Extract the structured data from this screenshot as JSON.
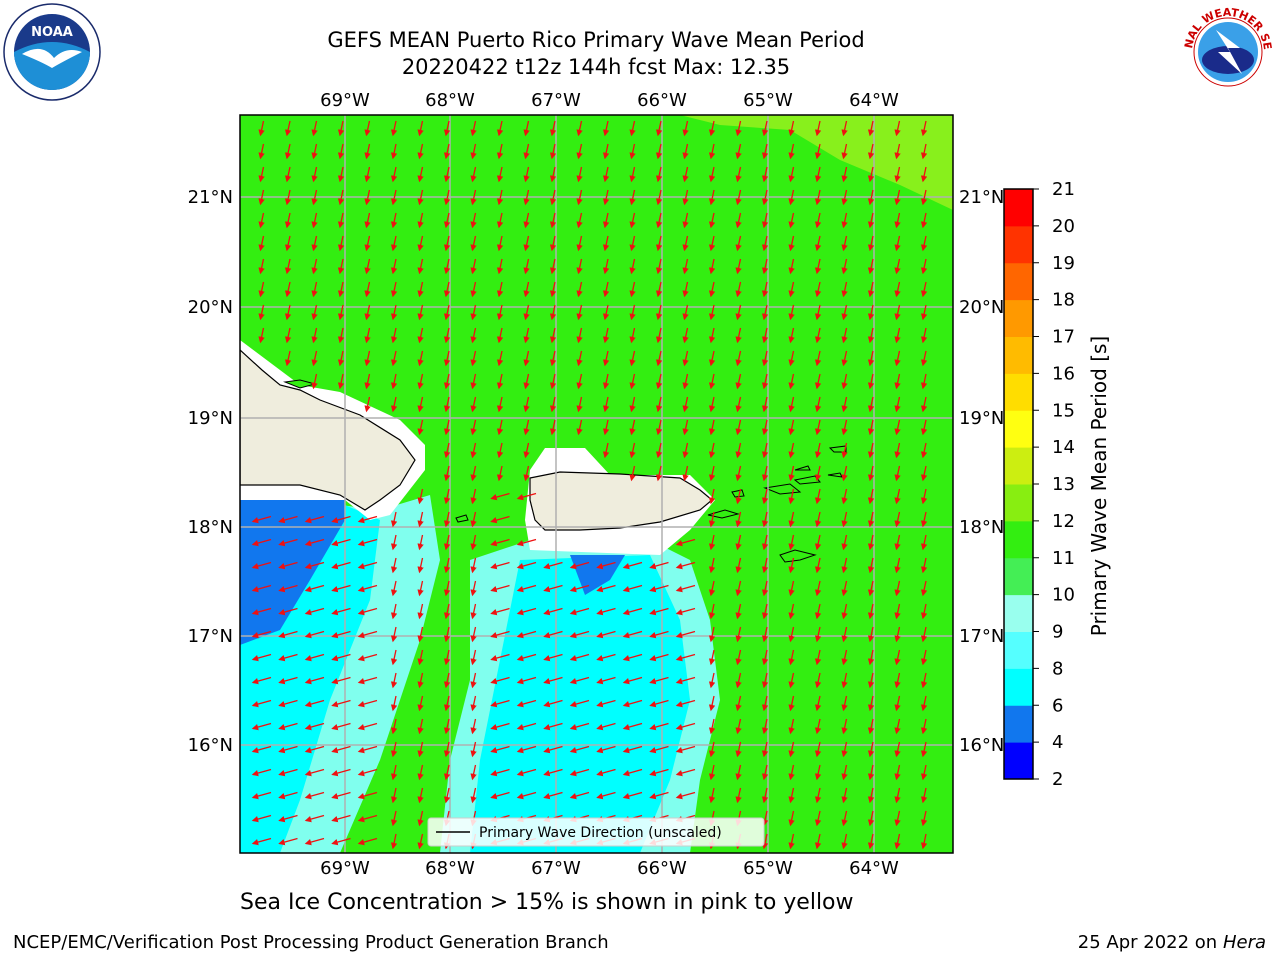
{
  "header": {
    "title_line1": "GEFS MEAN Puerto Rico Primary Wave Mean Period",
    "title_line2": "20220422 t12z 144h fcst   Max: 12.35"
  },
  "logos": {
    "left": {
      "icon": "noaa-logo-icon",
      "text": "NOAA"
    },
    "right": {
      "icon": "nws-logo-icon",
      "text": "NATIONAL WEATHER SERVICE"
    }
  },
  "map": {
    "lon_labels": [
      "69°W",
      "68°W",
      "67°W",
      "66°W",
      "65°W",
      "64°W"
    ],
    "lat_labels": [
      "21°N",
      "20°N",
      "19°N",
      "18°N",
      "17°N",
      "16°N"
    ],
    "legend_label": "Primary Wave Direction (unscaled)",
    "colors": {
      "ocean_main": "#33ee11",
      "ocean_light": "#88f01c",
      "land": "#efeddd",
      "cyan": "#00ffff",
      "light_cyan": "#80ffee",
      "blue": "#1177ee",
      "arrow": "#ee1111"
    }
  },
  "colorbar": {
    "label": "Primary Wave Mean Period [s]",
    "ticks": [
      "2",
      "4",
      "6",
      "8",
      "9",
      "10",
      "11",
      "12",
      "13",
      "14",
      "15",
      "16",
      "17",
      "18",
      "19",
      "20",
      "21"
    ],
    "colors": [
      "#0000ff",
      "#1177ee",
      "#00ffff",
      "#55ffff",
      "#99ffee",
      "#44ee55",
      "#33ee11",
      "#88ee11",
      "#ccee11",
      "#ffff11",
      "#ffdd00",
      "#ffbb00",
      "#ff9900",
      "#ff6600",
      "#ff3300",
      "#ff0000"
    ]
  },
  "caption": "Sea Ice Concentration > 15% is shown in pink to yellow",
  "footer": {
    "left": "NCEP/EMC/Verification Post Processing Product Generation Branch",
    "right_date": "25 Apr 2022 on ",
    "right_host": "Hera"
  }
}
